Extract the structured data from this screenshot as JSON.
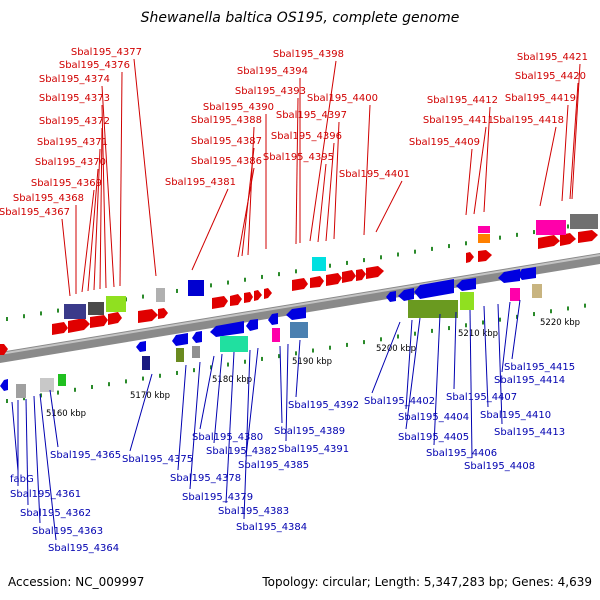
{
  "title": "Shewanella baltica OS195, complete genome",
  "footer": {
    "accession": "Accession: NC_009997",
    "summary": "Topology: circular; Length: 5,347,283 bp; Genes: 4,639"
  },
  "colors": {
    "forward_label": "#d00000",
    "reverse_label": "#0000b0",
    "backbone": "#909090",
    "tick": "#2a8a2a"
  },
  "scale_labels": [
    "5160 kbp",
    "5170 kbp",
    "5180 kbp",
    "5190 kbp",
    "5200 kbp",
    "5210 kbp",
    "5220 kbp"
  ],
  "forward_genes": [
    "Sbal195_4367",
    "Sbal195_4368",
    "Sbal195_4369",
    "Sbal195_4370",
    "Sbal195_4371",
    "Sbal195_4372",
    "Sbal195_4373",
    "Sbal195_4374",
    "Sbal195_4376",
    "Sbal195_4377",
    "Sbal195_4381",
    "Sbal195_4386",
    "Sbal195_4387",
    "Sbal195_4388",
    "Sbal195_4390",
    "Sbal195_4393",
    "Sbal195_4394",
    "Sbal195_4395",
    "Sbal195_4396",
    "Sbal195_4397",
    "Sbal195_4398",
    "Sbal195_4400",
    "Sbal195_4401",
    "Sbal195_4409",
    "Sbal195_4411",
    "Sbal195_4412",
    "Sbal195_4418",
    "Sbal195_4419",
    "Sbal195_4420",
    "Sbal195_4421"
  ],
  "reverse_genes": [
    "fabG",
    "Sbal195_4361",
    "Sbal195_4362",
    "Sbal195_4363",
    "Sbal195_4364",
    "Sbal195_4365",
    "Sbal195_4375",
    "Sbal195_4378",
    "Sbal195_4379",
    "Sbal195_4380",
    "Sbal195_4382",
    "Sbal195_4383",
    "Sbal195_4384",
    "Sbal195_4385",
    "Sbal195_4389",
    "Sbal195_4391",
    "Sbal195_4392",
    "Sbal195_4402",
    "Sbal195_4404",
    "Sbal195_4405",
    "Sbal195_4406",
    "Sbal195_4407",
    "Sbal195_4408",
    "Sbal195_4410",
    "Sbal195_4413",
    "Sbal195_4414",
    "Sbal195_4415"
  ]
}
